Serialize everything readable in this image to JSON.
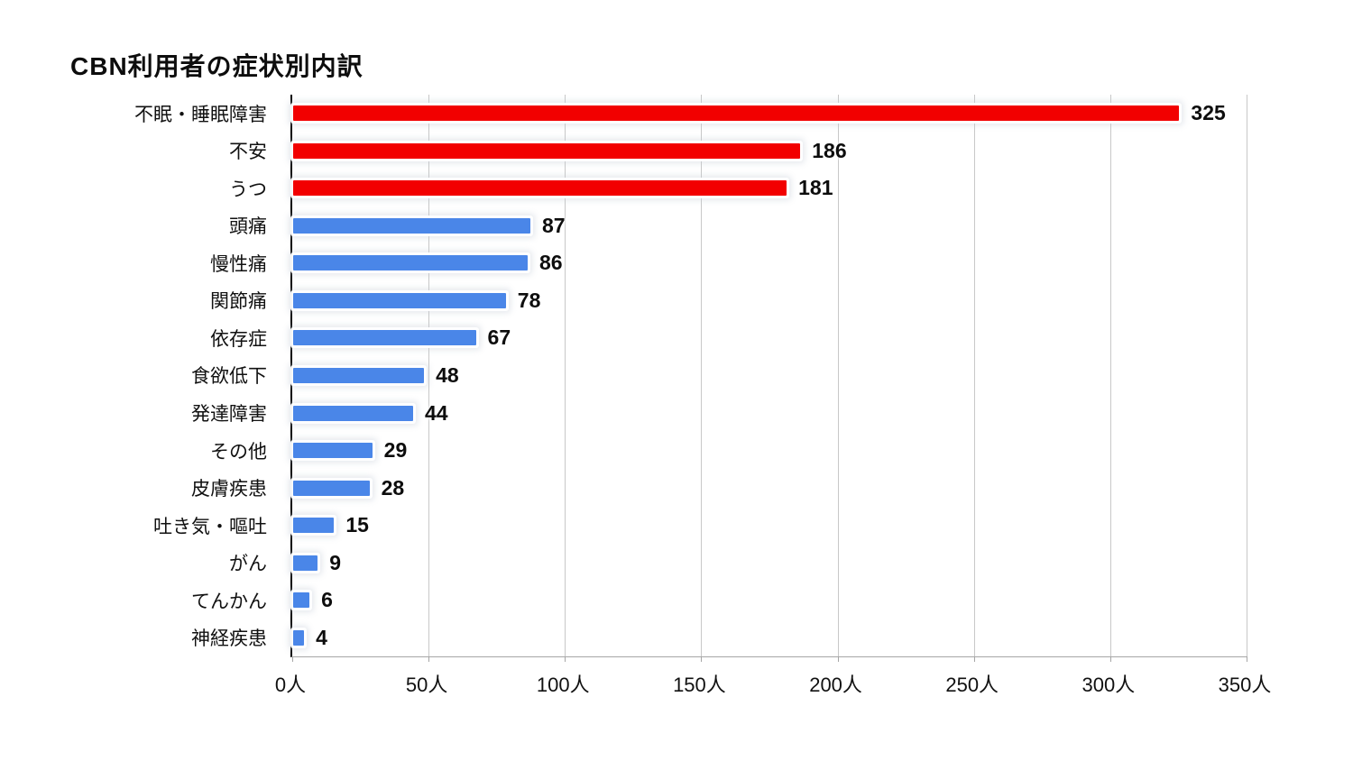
{
  "chart_data": {
    "type": "bar",
    "orientation": "horizontal",
    "title": "CBN利用者の症状別内訳",
    "categories": [
      "不眠・睡眠障害",
      "不安",
      "うつ",
      "頭痛",
      "慢性痛",
      "関節痛",
      "依存症",
      "食欲低下",
      "発達障害",
      "その他",
      "皮膚疾患",
      "吐き気・嘔吐",
      "がん",
      "てんかん",
      "神経疾患"
    ],
    "values": [
      325,
      186,
      181,
      87,
      86,
      78,
      67,
      48,
      44,
      29,
      28,
      15,
      9,
      6,
      4
    ],
    "bar_colors": [
      "#f20000",
      "#f20000",
      "#f20000",
      "#4a86e8",
      "#4a86e8",
      "#4a86e8",
      "#4a86e8",
      "#4a86e8",
      "#4a86e8",
      "#4a86e8",
      "#4a86e8",
      "#4a86e8",
      "#4a86e8",
      "#4a86e8",
      "#4a86e8"
    ],
    "value_labels": [
      "325",
      "186",
      "181",
      "87",
      "86",
      "78",
      "67",
      "48",
      "44",
      "29",
      "28",
      "15",
      "9",
      "6",
      "4"
    ],
    "xlabel": "",
    "ylabel": "",
    "unit": "人",
    "xlim": [
      0,
      350
    ],
    "x_tick_values": [
      0,
      50,
      100,
      150,
      200,
      250,
      300,
      350
    ],
    "x_tick_labels": [
      "0人",
      "50人",
      "100人",
      "150人",
      "200人",
      "250人",
      "300人",
      "350人"
    ],
    "grid": "vertical-gridlines-on",
    "legend": "none",
    "colors": {
      "highlight_bar": "#f20000",
      "default_bar": "#4a86e8",
      "gridline": "#c8c8c8",
      "axis_line": "#000000",
      "baseline": "#a6a6a6",
      "text": "#111111",
      "background": "#ffffff"
    }
  }
}
